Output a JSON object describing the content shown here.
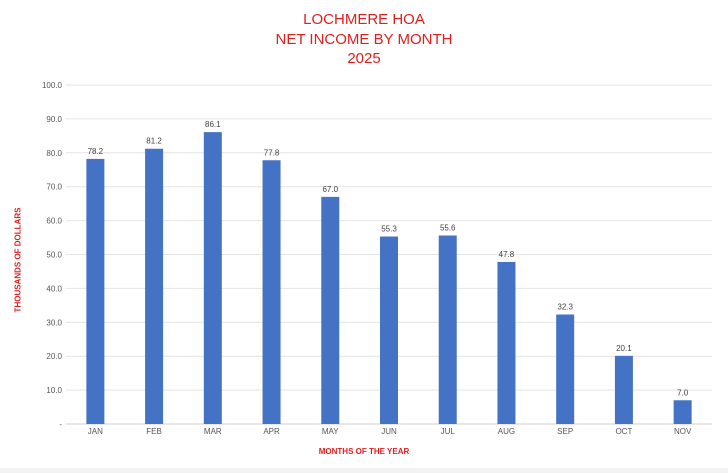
{
  "chart_data": {
    "type": "bar",
    "title": [
      "LOCHMERE HOA",
      "NET INCOME BY MONTH",
      "2025"
    ],
    "xlabel": "MONTHS OF THE YEAR",
    "ylabel": "THOUSANDS OF DOLLARS",
    "categories": [
      "JAN",
      "FEB",
      "MAR",
      "APR",
      "MAY",
      "JUN",
      "JUL",
      "AUG",
      "SEP",
      "OCT",
      "NOV"
    ],
    "values": [
      78.2,
      81.2,
      86.1,
      77.8,
      67.0,
      55.3,
      55.6,
      47.8,
      32.3,
      20.1,
      7.0
    ],
    "data_labels": [
      "78.2",
      "81.2",
      "86.1",
      "77.8",
      "67.0",
      "55.3",
      "55.6",
      "47.8",
      "32.3",
      "20.1",
      "7.0"
    ],
    "ylim": [
      0,
      100
    ],
    "yticks": [
      0,
      10,
      20,
      30,
      40,
      50,
      60,
      70,
      80,
      90,
      100
    ],
    "ytick_labels": [
      "-",
      "10.0",
      "20.0",
      "30.0",
      "40.0",
      "50.0",
      "60.0",
      "70.0",
      "80.0",
      "90.0",
      "100.0"
    ],
    "grid": true,
    "legend": "none",
    "bar_color": "#4472c4",
    "title_color": "#e01e1e",
    "label_color": "#e01e1e"
  }
}
